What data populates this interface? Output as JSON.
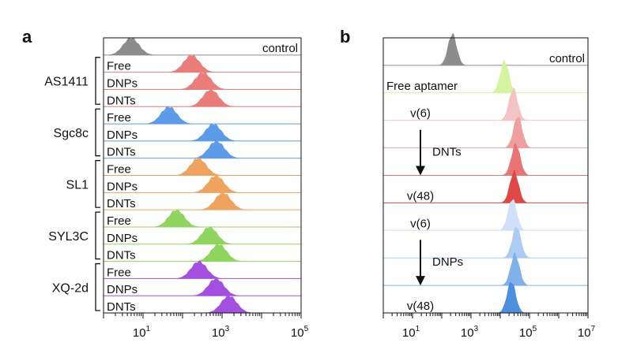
{
  "chart_data": [
    {
      "type": "histogram",
      "panel_label": "a",
      "x_scale": "log",
      "xlim": [
        1,
        100000
      ],
      "x_ticks": [
        {
          "value": 10,
          "base": "10",
          "exp": "1"
        },
        {
          "value": 1000,
          "base": "10",
          "exp": "3"
        },
        {
          "value": 100000,
          "base": "10",
          "exp": "5"
        }
      ],
      "tracks": [
        {
          "label": "control",
          "peak": 5,
          "color": "#8c8c8c"
        },
        {
          "label": "Free",
          "peak": 170,
          "color": "#ea7c7a"
        },
        {
          "label": "DNPs",
          "peak": 330,
          "color": "#ea7c7a"
        },
        {
          "label": "DNTs",
          "peak": 520,
          "color": "#ea7c7a"
        },
        {
          "label": "Free",
          "peak": 45,
          "color": "#5b9bea"
        },
        {
          "label": "DNPs",
          "peak": 600,
          "color": "#5b9bea"
        },
        {
          "label": "DNTs",
          "peak": 720,
          "color": "#5b9bea"
        },
        {
          "label": "Free",
          "peak": 250,
          "color": "#f0a35e"
        },
        {
          "label": "DNPs",
          "peak": 700,
          "color": "#f0a35e"
        },
        {
          "label": "DNTs",
          "peak": 1050,
          "color": "#f0a35e"
        },
        {
          "label": "Free",
          "peak": 70,
          "color": "#8fd65e"
        },
        {
          "label": "DNPs",
          "peak": 480,
          "color": "#8fd65e"
        },
        {
          "label": "DNTs",
          "peak": 820,
          "color": "#8fd65e"
        },
        {
          "label": "Free",
          "peak": 260,
          "color": "#a34fe0"
        },
        {
          "label": "DNPs",
          "peak": 700,
          "color": "#a34fe0"
        },
        {
          "label": "DNTs",
          "peak": 1500,
          "color": "#a34fe0"
        }
      ],
      "groups": [
        {
          "name": "AS1411",
          "first": 1,
          "last": 3
        },
        {
          "name": "Sgc8c",
          "first": 4,
          "last": 6
        },
        {
          "name": "SL1",
          "first": 7,
          "last": 9
        },
        {
          "name": "SYL3C",
          "first": 10,
          "last": 12
        },
        {
          "name": "XQ-2d",
          "first": 13,
          "last": 15
        }
      ]
    },
    {
      "type": "histogram",
      "panel_label": "b",
      "x_scale": "log",
      "xlim": [
        1,
        10000000
      ],
      "x_ticks": [
        {
          "value": 10,
          "base": "10",
          "exp": "1"
        },
        {
          "value": 1000,
          "base": "10",
          "exp": "3"
        },
        {
          "value": 100000,
          "base": "10",
          "exp": "5"
        },
        {
          "value": 10000000,
          "base": "10",
          "exp": "7"
        }
      ],
      "tracks": [
        {
          "label": "control",
          "peak": 230,
          "color": "#8c8c8c"
        },
        {
          "label": "Free aptamer",
          "peak": 14000,
          "color": "#d4f49e"
        },
        {
          "label": "v(6)",
          "peak": 28000,
          "color": "#f4c3c3"
        },
        {
          "label": "",
          "peak": 40000,
          "color": "#ef9f9f"
        },
        {
          "label": "",
          "peak": 34000,
          "color": "#ea7474"
        },
        {
          "label": "v(48)",
          "peak": 30000,
          "color": "#e04848"
        },
        {
          "label": "v(6)",
          "peak": 26000,
          "color": "#cfe0f8"
        },
        {
          "label": "",
          "peak": 36000,
          "color": "#aacbf2"
        },
        {
          "label": "",
          "peak": 32000,
          "color": "#7fb0ea"
        },
        {
          "label": "v(48)",
          "peak": 24000,
          "color": "#4d8ede"
        }
      ],
      "annotations": [
        {
          "text": "DNTs",
          "first": 2,
          "last": 5
        },
        {
          "text": "DNPs",
          "first": 6,
          "last": 9
        }
      ]
    }
  ]
}
